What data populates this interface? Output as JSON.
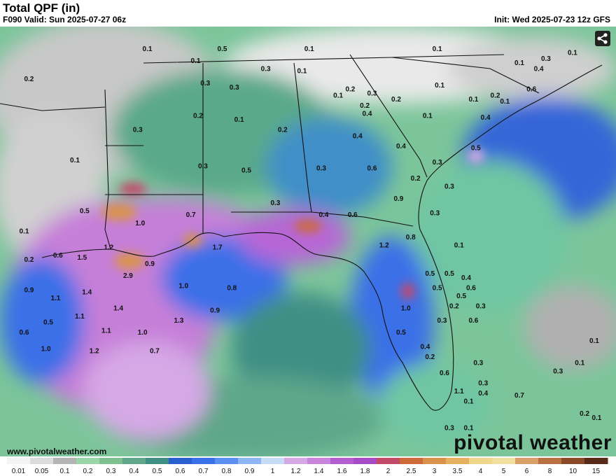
{
  "header": {
    "title": "Total QPF (in)",
    "valid": "F090 Valid: Sun 2025-07-27 06z",
    "init": "Init: Wed 2025-07-23 12z GFS"
  },
  "footer": {
    "website": "www.pivotalweather.com",
    "brand": "pivotal weather"
  },
  "legend": {
    "labels": [
      "0.01",
      "0.05",
      "0.1",
      "0.2",
      "0.3",
      "0.4",
      "0.5",
      "0.6",
      "0.7",
      "0.8",
      "0.9",
      "1",
      "1.2",
      "1.4",
      "1.6",
      "1.8",
      "2",
      "2.5",
      "3",
      "3.5",
      "4",
      "5",
      "6",
      "8",
      "10",
      "15"
    ],
    "colors": [
      "#f4f4f4",
      "#dcdcdc",
      "#b4b4b4",
      "#9ad6a8",
      "#7ec08f",
      "#5ea78a",
      "#3f8f85",
      "#2a5fd0",
      "#3a70e8",
      "#5b8ff0",
      "#8fb6f4",
      "#c7dcf7",
      "#d6a8e6",
      "#c984dc",
      "#b55ed2",
      "#a64ac6",
      "#c44a6a",
      "#cc6a3a",
      "#d9924c",
      "#e6b060",
      "#f0d68a",
      "#f2e0a0",
      "#d8a068",
      "#b87040",
      "#8a4a28",
      "#5a2a18"
    ]
  },
  "map_data": {
    "qpf_labels": [
      {
        "text": "0.1",
        "lon": -93.9,
        "lat": 35.0
      },
      {
        "text": "0.5",
        "lon": -90.8,
        "lat": 35.0
      },
      {
        "text": "0.1",
        "lon": -87.2,
        "lat": 35.0
      },
      {
        "text": "0.1",
        "lon": -81.9,
        "lat": 35.0
      },
      {
        "text": "0.1",
        "lon": -76.3,
        "lat": 34.8
      },
      {
        "text": "0.2",
        "lon": -98.8,
        "lat": 33.5
      },
      {
        "text": "0.1",
        "lon": -91.9,
        "lat": 34.4
      },
      {
        "text": "0.3",
        "lon": -89.0,
        "lat": 34.0
      },
      {
        "text": "0.1",
        "lon": -87.5,
        "lat": 33.9
      },
      {
        "text": "0.1",
        "lon": -78.5,
        "lat": 34.3
      },
      {
        "text": "0.3",
        "lon": -77.4,
        "lat": 34.5
      },
      {
        "text": "0.4",
        "lon": -77.7,
        "lat": 34.0
      },
      {
        "text": "0.3",
        "lon": -91.5,
        "lat": 33.3
      },
      {
        "text": "0.3",
        "lon": -90.3,
        "lat": 33.1
      },
      {
        "text": "0.1",
        "lon": -86.0,
        "lat": 32.7
      },
      {
        "text": "0.2",
        "lon": -85.5,
        "lat": 33.0
      },
      {
        "text": "0.3",
        "lon": -84.6,
        "lat": 32.8
      },
      {
        "text": "0.2",
        "lon": -83.6,
        "lat": 32.5
      },
      {
        "text": "0.1",
        "lon": -81.8,
        "lat": 33.2
      },
      {
        "text": "0.6",
        "lon": -78.0,
        "lat": 33.0
      },
      {
        "text": "0.1",
        "lon": -80.4,
        "lat": 32.5
      },
      {
        "text": "0.2",
        "lon": -79.5,
        "lat": 32.7
      },
      {
        "text": "0.1",
        "lon": -79.1,
        "lat": 32.4
      },
      {
        "text": "0.2",
        "lon": -84.9,
        "lat": 32.2
      },
      {
        "text": "0.4",
        "lon": -84.8,
        "lat": 31.8
      },
      {
        "text": "0.2",
        "lon": -91.8,
        "lat": 31.7
      },
      {
        "text": "0.1",
        "lon": -90.1,
        "lat": 31.5
      },
      {
        "text": "0.2",
        "lon": -88.3,
        "lat": 31.0
      },
      {
        "text": "0.1",
        "lon": -82.3,
        "lat": 31.7
      },
      {
        "text": "0.4",
        "lon": -79.9,
        "lat": 31.6
      },
      {
        "text": "0.3",
        "lon": -94.3,
        "lat": 31.0
      },
      {
        "text": "0.4",
        "lon": -85.2,
        "lat": 30.7
      },
      {
        "text": "0.4",
        "lon": -83.4,
        "lat": 30.2
      },
      {
        "text": "0.5",
        "lon": -80.3,
        "lat": 30.1
      },
      {
        "text": "0.1",
        "lon": -96.9,
        "lat": 29.5
      },
      {
        "text": "0.3",
        "lon": -91.6,
        "lat": 29.2
      },
      {
        "text": "0.5",
        "lon": -89.8,
        "lat": 29.0
      },
      {
        "text": "0.3",
        "lon": -86.7,
        "lat": 29.1
      },
      {
        "text": "0.6",
        "lon": -84.6,
        "lat": 29.1
      },
      {
        "text": "0.3",
        "lon": -81.9,
        "lat": 29.4
      },
      {
        "text": "0.2",
        "lon": -82.8,
        "lat": 28.6
      },
      {
        "text": "0.3",
        "lon": -81.4,
        "lat": 28.2
      },
      {
        "text": "0.9",
        "lon": -83.5,
        "lat": 27.6
      },
      {
        "text": "0.5",
        "lon": -96.5,
        "lat": 27.0
      },
      {
        "text": "0.3",
        "lon": -88.6,
        "lat": 27.4
      },
      {
        "text": "0.4",
        "lon": -86.6,
        "lat": 26.8
      },
      {
        "text": "0.6",
        "lon": -85.4,
        "lat": 26.8
      },
      {
        "text": "0.3",
        "lon": -82.0,
        "lat": 26.9
      },
      {
        "text": "1.0",
        "lon": -94.2,
        "lat": 26.4
      },
      {
        "text": "0.7",
        "lon": -92.1,
        "lat": 26.8
      },
      {
        "text": "0.1",
        "lon": -99.0,
        "lat": 26.0
      },
      {
        "text": "0.8",
        "lon": -83.0,
        "lat": 25.7
      },
      {
        "text": "0.1",
        "lon": -81.0,
        "lat": 25.3
      },
      {
        "text": "1.2",
        "lon": -95.5,
        "lat": 25.2
      },
      {
        "text": "1.7",
        "lon": -91.0,
        "lat": 25.2
      },
      {
        "text": "1.2",
        "lon": -84.1,
        "lat": 25.3
      },
      {
        "text": "0.6",
        "lon": -97.6,
        "lat": 24.8
      },
      {
        "text": "1.5",
        "lon": -96.6,
        "lat": 24.7
      },
      {
        "text": "0.2",
        "lon": -98.8,
        "lat": 24.6
      },
      {
        "text": "0.9",
        "lon": -93.8,
        "lat": 24.4
      },
      {
        "text": "0.5",
        "lon": -82.2,
        "lat": 23.9
      },
      {
        "text": "0.5",
        "lon": -81.4,
        "lat": 23.9
      },
      {
        "text": "2.9",
        "lon": -94.7,
        "lat": 23.8
      },
      {
        "text": "0.4",
        "lon": -80.7,
        "lat": 23.7
      },
      {
        "text": "1.0",
        "lon": -92.4,
        "lat": 23.3
      },
      {
        "text": "0.8",
        "lon": -90.4,
        "lat": 23.2
      },
      {
        "text": "0.5",
        "lon": -81.9,
        "lat": 23.2
      },
      {
        "text": "0.6",
        "lon": -80.5,
        "lat": 23.2
      },
      {
        "text": "0.9",
        "lon": -98.8,
        "lat": 23.1
      },
      {
        "text": "1.4",
        "lon": -96.4,
        "lat": 23.0
      },
      {
        "text": "0.5",
        "lon": -80.9,
        "lat": 22.8
      },
      {
        "text": "1.1",
        "lon": -97.7,
        "lat": 22.7
      },
      {
        "text": "0.2",
        "lon": -81.2,
        "lat": 22.3
      },
      {
        "text": "0.3",
        "lon": -80.1,
        "lat": 22.3
      },
      {
        "text": "1.0",
        "lon": -83.2,
        "lat": 22.2
      },
      {
        "text": "1.4",
        "lon": -95.1,
        "lat": 22.2
      },
      {
        "text": "0.9",
        "lon": -91.1,
        "lat": 22.1
      },
      {
        "text": "1.1",
        "lon": -96.7,
        "lat": 21.8
      },
      {
        "text": "1.3",
        "lon": -92.6,
        "lat": 21.6
      },
      {
        "text": "0.3",
        "lon": -81.7,
        "lat": 21.6
      },
      {
        "text": "0.6",
        "lon": -80.4,
        "lat": 21.6
      },
      {
        "text": "0.5",
        "lon": -98.0,
        "lat": 21.5
      },
      {
        "text": "1.1",
        "lon": -95.6,
        "lat": 21.1
      },
      {
        "text": "1.0",
        "lon": -94.1,
        "lat": 21.0
      },
      {
        "text": "0.6",
        "lon": -99.0,
        "lat": 21.0
      },
      {
        "text": "0.5",
        "lon": -83.4,
        "lat": 21.0
      },
      {
        "text": "0.1",
        "lon": -75.4,
        "lat": 20.6
      },
      {
        "text": "0.4",
        "lon": -82.4,
        "lat": 20.3
      },
      {
        "text": "1.0",
        "lon": -98.1,
        "lat": 20.2
      },
      {
        "text": "1.2",
        "lon": -96.1,
        "lat": 20.1
      },
      {
        "text": "0.7",
        "lon": -93.6,
        "lat": 20.1
      },
      {
        "text": "0.2",
        "lon": -82.2,
        "lat": 19.8
      },
      {
        "text": "0.3",
        "lon": -80.2,
        "lat": 19.5
      },
      {
        "text": "0.1",
        "lon": -76.0,
        "lat": 19.5
      },
      {
        "text": "0.3",
        "lon": -76.9,
        "lat": 19.1
      },
      {
        "text": "0.6",
        "lon": -81.6,
        "lat": 19.0
      },
      {
        "text": "0.3",
        "lon": -80.0,
        "lat": 18.5
      },
      {
        "text": "1.1",
        "lon": -81.0,
        "lat": 18.1
      },
      {
        "text": "0.4",
        "lon": -80.0,
        "lat": 18.0
      },
      {
        "text": "0.7",
        "lon": -78.5,
        "lat": 17.9
      },
      {
        "text": "0.1",
        "lon": -80.6,
        "lat": 17.6
      },
      {
        "text": "0.2",
        "lon": -75.8,
        "lat": 17.0
      },
      {
        "text": "0.1",
        "lon": -75.3,
        "lat": 16.8
      },
      {
        "text": "0.1",
        "lon": -80.6,
        "lat": 16.3
      },
      {
        "text": "0.3",
        "lon": -81.4,
        "lat": 16.3
      }
    ]
  }
}
